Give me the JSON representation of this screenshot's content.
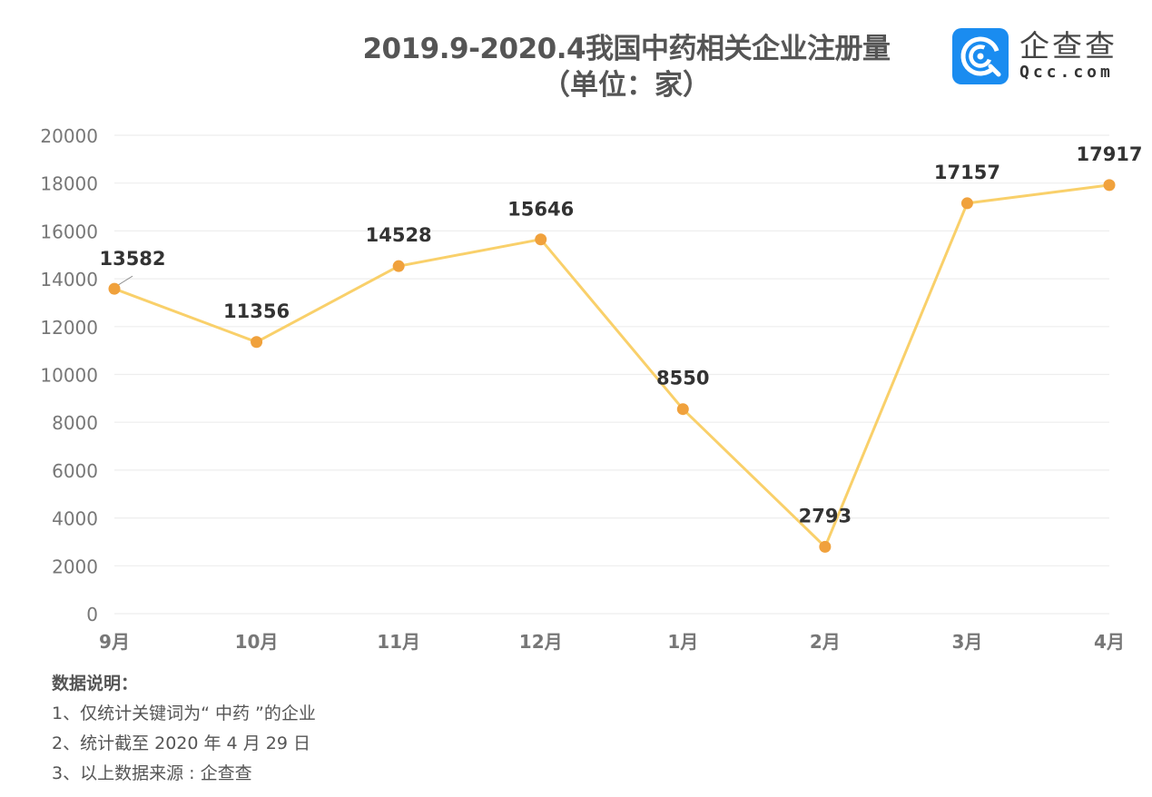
{
  "header": {
    "title_line1": "2019.9-2020.4我国中药相关企业注册量",
    "title_line2": "（单位：家）"
  },
  "logo": {
    "icon": "qcc-logo-icon",
    "name_cn": "企查查",
    "name_en": "Qcc.com",
    "color": "#1a8cf0"
  },
  "chart_data": {
    "type": "line",
    "title": "2019.9-2020.4我国中药相关企业注册量（单位：家）",
    "xlabel": "",
    "ylabel": "",
    "categories": [
      "9月",
      "10月",
      "11月",
      "12月",
      "1月",
      "2月",
      "3月",
      "4月"
    ],
    "series": [
      {
        "name": "中药相关企业注册量",
        "values": [
          13582,
          11356,
          14528,
          15646,
          8550,
          2793,
          17157,
          17917
        ]
      }
    ],
    "ylim": [
      0,
      20000
    ],
    "yticks": [
      0,
      2000,
      4000,
      6000,
      8000,
      10000,
      12000,
      14000,
      16000,
      18000,
      20000
    ],
    "grid": true,
    "legend": false,
    "data_labels": true,
    "colors": {
      "line": "#f9d06a",
      "marker": "#f0a13c",
      "grid": "#eeeeee",
      "tick_label": "#777777",
      "data_label": "#333333"
    }
  },
  "notes": {
    "title": "数据说明：",
    "items": [
      "1、仅统计关键词为“ 中药 ”的企业",
      "2、统计截至 2020 年 4 月 29 日",
      "3、以上数据来源 : 企查查"
    ]
  }
}
